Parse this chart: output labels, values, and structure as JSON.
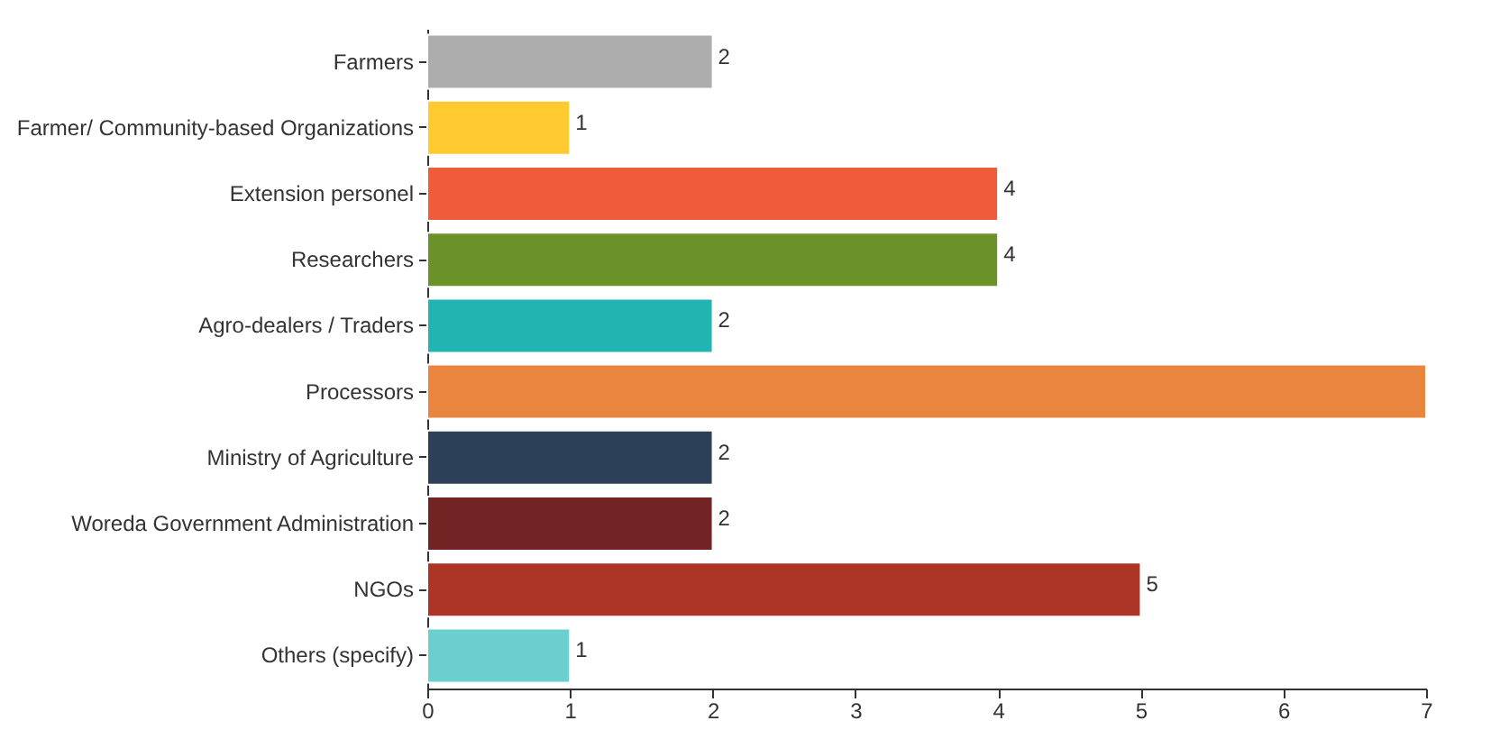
{
  "chart_data": {
    "type": "bar",
    "orientation": "horizontal",
    "categories": [
      "Farmers",
      "Farmer/ Community-based Organizations",
      "Extension personel",
      "Researchers",
      "Agro-dealers / Traders",
      "Processors",
      "Ministry of Agriculture",
      "Woreda Government Administration",
      "NGOs",
      "Others (specify)"
    ],
    "values": [
      2,
      1,
      4,
      4,
      2,
      7,
      2,
      2,
      5,
      1
    ],
    "value_labels": [
      "2",
      "1",
      "4",
      "4",
      "2",
      null,
      "2",
      "2",
      "5",
      "1"
    ],
    "colors": [
      "#adadad",
      "#ffca2f",
      "#f05b3c",
      "#6a9229",
      "#22b3b3",
      "#ea8540",
      "#2c4058",
      "#722425",
      "#ad3525",
      "#6bcfce"
    ],
    "xlim": [
      0,
      7
    ],
    "xticks": [
      0,
      1,
      2,
      3,
      4,
      5,
      6,
      7
    ],
    "grid": false,
    "legend": false
  }
}
